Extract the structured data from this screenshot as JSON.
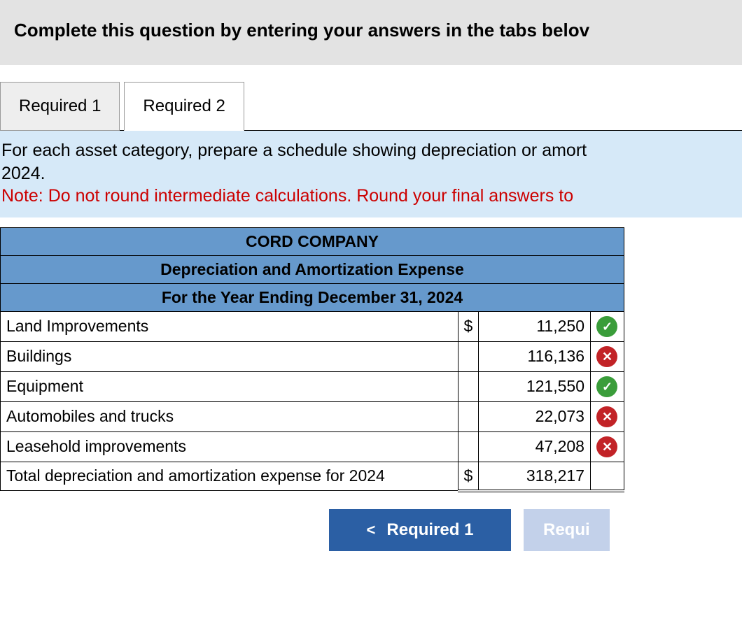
{
  "instruction": "Complete this question by entering your answers in the tabs belov",
  "tabs": [
    {
      "label": "Required 1",
      "active": false
    },
    {
      "label": "Required 2",
      "active": true
    }
  ],
  "prompt": {
    "line1": "For each asset category, prepare a schedule showing depreciation or amort",
    "line2": "2024.",
    "note": "Note: Do not round intermediate calculations. Round your final answers to"
  },
  "table": {
    "title": "CORD COMPANY",
    "subtitle": "Depreciation and Amortization Expense",
    "period": "For the Year Ending December 31, 2024",
    "header_bg": "#6699cc",
    "rows": [
      {
        "label": "Land Improvements",
        "dollar": "$",
        "value": "11,250",
        "status": "correct"
      },
      {
        "label": "Buildings",
        "dollar": "",
        "value": "116,136",
        "status": "wrong"
      },
      {
        "label": "Equipment",
        "dollar": "",
        "value": "121,550",
        "status": "correct"
      },
      {
        "label": "Automobiles and trucks",
        "dollar": "",
        "value": "22,073",
        "status": "wrong"
      },
      {
        "label": "Leasehold improvements",
        "dollar": "",
        "value": "47,208",
        "status": "wrong"
      }
    ],
    "total": {
      "label": "Total depreciation and amortization expense for 2024",
      "dollar": "$",
      "value": "318,217"
    }
  },
  "nav": {
    "prev": "Required 1",
    "next": "Requi",
    "chevron_left": "<"
  },
  "colors": {
    "correct": "#3a9d3a",
    "wrong": "#c22327",
    "accent": "#2b5fa4"
  },
  "icons": {
    "correct_glyph": "✓",
    "wrong_glyph": "✕"
  }
}
